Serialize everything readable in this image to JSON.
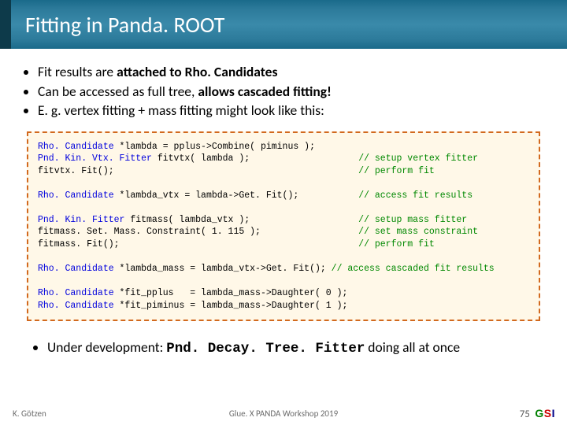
{
  "header": {
    "title": "Fitting in Panda. ROOT"
  },
  "bullets": [
    {
      "pre": "Fit results are ",
      "bold": "attached to Rho. Candidates",
      "post": ""
    },
    {
      "pre": "Can be accessed as full tree, ",
      "bold": "allows cascaded fitting!",
      "post": ""
    },
    {
      "pre": "E. g. vertex fitting + mass fitting might look like this:",
      "bold": "",
      "post": ""
    }
  ],
  "code": {
    "lines": [
      {
        "cls": "Rho. Candidate",
        "code": " *lambda = pplus->Combine( piminus );",
        "cmt": ""
      },
      {
        "cls": "Pnd. Kin. Vtx. Fitter",
        "code": " fitvtx( lambda );                    ",
        "cmt": "// setup vertex fitter"
      },
      {
        "cls": "",
        "code": "fitvtx. Fit();                                             ",
        "cmt": "// perform fit"
      },
      {
        "cls": "",
        "code": "",
        "cmt": ""
      },
      {
        "cls": "Rho. Candidate",
        "code": " *lambda_vtx = lambda->Get. Fit();           ",
        "cmt": "// access fit results"
      },
      {
        "cls": "",
        "code": "",
        "cmt": ""
      },
      {
        "cls": "Pnd. Kin. Fitter",
        "code": " fitmass( lambda_vtx );                    ",
        "cmt": "// setup mass fitter"
      },
      {
        "cls": "",
        "code": "fitmass. Set. Mass. Constraint( 1. 115 );                  ",
        "cmt": "// set mass constraint"
      },
      {
        "cls": "",
        "code": "fitmass. Fit();                                            ",
        "cmt": "// perform fit"
      },
      {
        "cls": "",
        "code": "",
        "cmt": ""
      },
      {
        "cls": "Rho. Candidate",
        "code": " *lambda_mass = lambda_vtx->Get. Fit(); ",
        "cmt": "// access cascaded fit results"
      },
      {
        "cls": "",
        "code": "",
        "cmt": ""
      },
      {
        "cls": "Rho. Candidate",
        "code": " *fit_pplus   = lambda_mass->Daughter( 0 );",
        "cmt": ""
      },
      {
        "cls": "Rho. Candidate",
        "code": " *fit_piminus = lambda_mass->Daughter( 1 );",
        "cmt": ""
      }
    ]
  },
  "underdev": {
    "label": "Under development:   ",
    "class": "Pnd. Decay. Tree. Fitter",
    "post": " doing all at once"
  },
  "footer": {
    "author": "K. Götzen",
    "center": "Glue. X PANDA Workshop 2019",
    "page": "75",
    "logo": {
      "g": "G",
      "s": "S",
      "i": "I"
    }
  },
  "style": {
    "header_gradient": [
      "#1a6a8a",
      "#3a8aaa"
    ],
    "code_bg": "#fff8e8",
    "code_border": "#d2691e",
    "keyword_color": "#0000dd",
    "comment_color": "#008800"
  }
}
